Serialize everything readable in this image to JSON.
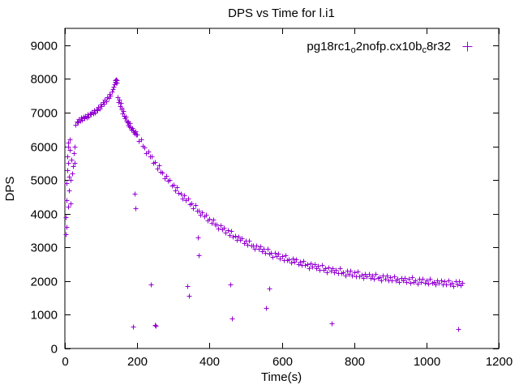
{
  "chart_data": {
    "type": "scatter",
    "title": "DPS vs Time for l.i1",
    "xlabel": "Time(s)",
    "ylabel": "DPS",
    "xlim": [
      0,
      1200
    ],
    "ylim": [
      0,
      9500
    ],
    "x_ticks": [
      0,
      200,
      400,
      600,
      800,
      1000,
      1200
    ],
    "y_ticks": [
      0,
      1000,
      2000,
      3000,
      4000,
      5000,
      6000,
      7000,
      8000,
      9000
    ],
    "grid": false,
    "legend": {
      "position": "top-right-inside",
      "label_plain": "pg18rc1_o2nofp.cx10b_c8r32",
      "segments": [
        {
          "t": "pg18rc1"
        },
        {
          "t": "o"
        },
        {
          "t": "2nofp.cx10b"
        },
        {
          "t": "c"
        },
        {
          "t": "8r32"
        }
      ],
      "marker": "+"
    },
    "marker": {
      "shape": "plus",
      "color": "#9400D3"
    },
    "series": [
      {
        "name": "pg18rc1_o2nofp.cx10b_c8r32",
        "points": [
          [
            2,
            3400
          ],
          [
            3,
            3900
          ],
          [
            4,
            4400
          ],
          [
            5,
            4900
          ],
          [
            5,
            3600
          ],
          [
            6,
            5300
          ],
          [
            7,
            5700
          ],
          [
            8,
            6000
          ],
          [
            8,
            4200
          ],
          [
            9,
            6100
          ],
          [
            10,
            5500
          ],
          [
            11,
            4700
          ],
          [
            12,
            5100
          ],
          [
            13,
            5900
          ],
          [
            14,
            6200
          ],
          [
            15,
            5000
          ],
          [
            16,
            4300
          ],
          [
            18,
            5600
          ],
          [
            20,
            5200
          ],
          [
            22,
            5400
          ],
          [
            25,
            5800
          ],
          [
            27,
            6000
          ],
          [
            28,
            5500
          ],
          [
            30,
            6650
          ],
          [
            33,
            6740
          ],
          [
            36,
            6700
          ],
          [
            39,
            6800
          ],
          [
            42,
            6760
          ],
          [
            45,
            6850
          ],
          [
            48,
            6790
          ],
          [
            51,
            6880
          ],
          [
            54,
            6830
          ],
          [
            57,
            6900
          ],
          [
            60,
            6860
          ],
          [
            63,
            6950
          ],
          [
            66,
            6890
          ],
          [
            69,
            6980
          ],
          [
            72,
            6940
          ],
          [
            75,
            7020
          ],
          [
            78,
            6970
          ],
          [
            81,
            7060
          ],
          [
            84,
            7010
          ],
          [
            87,
            7100
          ],
          [
            90,
            7080
          ],
          [
            93,
            7160
          ],
          [
            96,
            7120
          ],
          [
            99,
            7230
          ],
          [
            102,
            7180
          ],
          [
            105,
            7300
          ],
          [
            108,
            7260
          ],
          [
            111,
            7380
          ],
          [
            114,
            7330
          ],
          [
            117,
            7450
          ],
          [
            120,
            7420
          ],
          [
            123,
            7540
          ],
          [
            126,
            7500
          ],
          [
            129,
            7620
          ],
          [
            132,
            7700
          ],
          [
            134,
            7780
          ],
          [
            136,
            7850
          ],
          [
            138,
            7920
          ],
          [
            140,
            7960
          ],
          [
            141,
            7880
          ],
          [
            142,
            7990
          ],
          [
            143,
            7900
          ],
          [
            144,
            7950
          ],
          [
            146,
            7450
          ],
          [
            148,
            7300
          ],
          [
            150,
            7380
          ],
          [
            152,
            7200
          ],
          [
            154,
            7280
          ],
          [
            156,
            7100
          ],
          [
            158,
            7150
          ],
          [
            160,
            6980
          ],
          [
            162,
            7050
          ],
          [
            164,
            6900
          ],
          [
            166,
            6820
          ],
          [
            168,
            6880
          ],
          [
            170,
            6760
          ],
          [
            172,
            6700
          ],
          [
            174,
            6740
          ],
          [
            176,
            6650
          ],
          [
            178,
            6600
          ],
          [
            180,
            6680
          ],
          [
            182,
            6560
          ],
          [
            184,
            6500
          ],
          [
            186,
            6540
          ],
          [
            188,
            6460
          ],
          [
            190,
            6420
          ],
          [
            192,
            6380
          ],
          [
            195,
            6440
          ],
          [
            198,
            6350
          ],
          [
            200,
            6340
          ],
          [
            205,
            6150
          ],
          [
            210,
            6210
          ],
          [
            215,
            6010
          ],
          [
            220,
            5960
          ],
          [
            225,
            5790
          ],
          [
            230,
            5850
          ],
          [
            235,
            5690
          ],
          [
            240,
            5700
          ],
          [
            245,
            5510
          ],
          [
            250,
            5520
          ],
          [
            255,
            5350
          ],
          [
            260,
            5430
          ],
          [
            265,
            5240
          ],
          [
            270,
            5210
          ],
          [
            275,
            5050
          ],
          [
            280,
            5130
          ],
          [
            285,
            4980
          ],
          [
            290,
            5010
          ],
          [
            295,
            4830
          ],
          [
            300,
            4860
          ],
          [
            305,
            4700
          ],
          [
            310,
            4790
          ],
          [
            315,
            4610
          ],
          [
            320,
            4590
          ],
          [
            325,
            4450
          ],
          [
            330,
            4540
          ],
          [
            335,
            4400
          ],
          [
            340,
            4440
          ],
          [
            345,
            4270
          ],
          [
            350,
            4310
          ],
          [
            355,
            4160
          ],
          [
            360,
            4260
          ],
          [
            365,
            4100
          ],
          [
            370,
            4090
          ],
          [
            375,
            3960
          ],
          [
            380,
            4050
          ],
          [
            385,
            3930
          ],
          [
            390,
            3980
          ],
          [
            395,
            3810
          ],
          [
            400,
            3860
          ],
          [
            405,
            3720
          ],
          [
            410,
            3830
          ],
          [
            415,
            3670
          ],
          [
            420,
            3680
          ],
          [
            425,
            3550
          ],
          [
            430,
            3650
          ],
          [
            435,
            3540
          ],
          [
            440,
            3590
          ],
          [
            445,
            3440
          ],
          [
            450,
            3500
          ],
          [
            455,
            3360
          ],
          [
            460,
            3480
          ],
          [
            465,
            3330
          ],
          [
            470,
            3340
          ],
          [
            475,
            3220
          ],
          [
            480,
            3330
          ],
          [
            485,
            3220
          ],
          [
            490,
            3280
          ],
          [
            495,
            3130
          ],
          [
            500,
            3200
          ],
          [
            505,
            3070
          ],
          [
            510,
            3190
          ],
          [
            515,
            3050
          ],
          [
            520,
            3060
          ],
          [
            525,
            2950
          ],
          [
            530,
            3060
          ],
          [
            535,
            2960
          ],
          [
            540,
            3030
          ],
          [
            545,
            2880
          ],
          [
            550,
            2950
          ],
          [
            555,
            2830
          ],
          [
            560,
            2960
          ],
          [
            565,
            2820
          ],
          [
            570,
            2840
          ],
          [
            575,
            2720
          ],
          [
            580,
            2840
          ],
          [
            585,
            2750
          ],
          [
            590,
            2820
          ],
          [
            595,
            2680
          ],
          [
            600,
            2750
          ],
          [
            605,
            2630
          ],
          [
            610,
            2760
          ],
          [
            615,
            2630
          ],
          [
            620,
            2650
          ],
          [
            625,
            2540
          ],
          [
            630,
            2670
          ],
          [
            635,
            2570
          ],
          [
            640,
            2640
          ],
          [
            645,
            2510
          ],
          [
            650,
            2580
          ],
          [
            655,
            2470
          ],
          [
            660,
            2600
          ],
          [
            665,
            2470
          ],
          [
            670,
            2500
          ],
          [
            675,
            2390
          ],
          [
            680,
            2520
          ],
          [
            685,
            2430
          ],
          [
            690,
            2500
          ],
          [
            695,
            2370
          ],
          [
            700,
            2450
          ],
          [
            705,
            2340
          ],
          [
            710,
            2480
          ],
          [
            715,
            2340
          ],
          [
            720,
            2370
          ],
          [
            725,
            2270
          ],
          [
            730,
            2400
          ],
          [
            735,
            2310
          ],
          [
            740,
            2390
          ],
          [
            745,
            2260
          ],
          [
            750,
            2340
          ],
          [
            755,
            2230
          ],
          [
            760,
            2370
          ],
          [
            765,
            2240
          ],
          [
            770,
            2270
          ],
          [
            775,
            2170
          ],
          [
            780,
            2300
          ],
          [
            785,
            2210
          ],
          [
            790,
            2300
          ],
          [
            795,
            2170
          ],
          [
            800,
            2250
          ],
          [
            805,
            2140
          ],
          [
            810,
            2280
          ],
          [
            815,
            2150
          ],
          [
            820,
            2190
          ],
          [
            825,
            2090
          ],
          [
            830,
            2220
          ],
          [
            835,
            2140
          ],
          [
            840,
            2220
          ],
          [
            845,
            2090
          ],
          [
            850,
            2170
          ],
          [
            855,
            2070
          ],
          [
            860,
            2210
          ],
          [
            865,
            2090
          ],
          [
            870,
            2120
          ],
          [
            875,
            2020
          ],
          [
            880,
            2160
          ],
          [
            885,
            2070
          ],
          [
            890,
            2160
          ],
          [
            895,
            2030
          ],
          [
            900,
            2110
          ],
          [
            905,
            2010
          ],
          [
            910,
            2150
          ],
          [
            915,
            2030
          ],
          [
            920,
            2060
          ],
          [
            925,
            1970
          ],
          [
            930,
            2100
          ],
          [
            935,
            2020
          ],
          [
            940,
            2100
          ],
          [
            945,
            1980
          ],
          [
            950,
            2060
          ],
          [
            955,
            1960
          ],
          [
            960,
            2110
          ],
          [
            965,
            1980
          ],
          [
            970,
            2020
          ],
          [
            975,
            1920
          ],
          [
            980,
            2060
          ],
          [
            985,
            1980
          ],
          [
            990,
            2060
          ],
          [
            995,
            1940
          ],
          [
            1000,
            2020
          ],
          [
            1005,
            1920
          ],
          [
            1010,
            2070
          ],
          [
            1015,
            1940
          ],
          [
            1020,
            1980
          ],
          [
            1025,
            1890
          ],
          [
            1030,
            2020
          ],
          [
            1035,
            1940
          ],
          [
            1040,
            2030
          ],
          [
            1045,
            1900
          ],
          [
            1050,
            1990
          ],
          [
            1055,
            1890
          ],
          [
            1060,
            2030
          ],
          [
            1065,
            1910
          ],
          [
            1070,
            1950
          ],
          [
            1075,
            1860
          ],
          [
            1080,
            1990
          ],
          [
            1085,
            1910
          ],
          [
            1090,
            2000
          ],
          [
            1095,
            1880
          ],
          [
            1100,
            1960
          ],
          [
            188,
            650
          ],
          [
            193,
            4600
          ],
          [
            196,
            4150
          ],
          [
            238,
            1900
          ],
          [
            248,
            700
          ],
          [
            252,
            680
          ],
          [
            338,
            1850
          ],
          [
            343,
            1560
          ],
          [
            368,
            3300
          ],
          [
            371,
            2760
          ],
          [
            458,
            1900
          ],
          [
            463,
            900
          ],
          [
            556,
            1200
          ],
          [
            566,
            1780
          ],
          [
            738,
            750
          ],
          [
            1088,
            580
          ]
        ]
      }
    ]
  }
}
